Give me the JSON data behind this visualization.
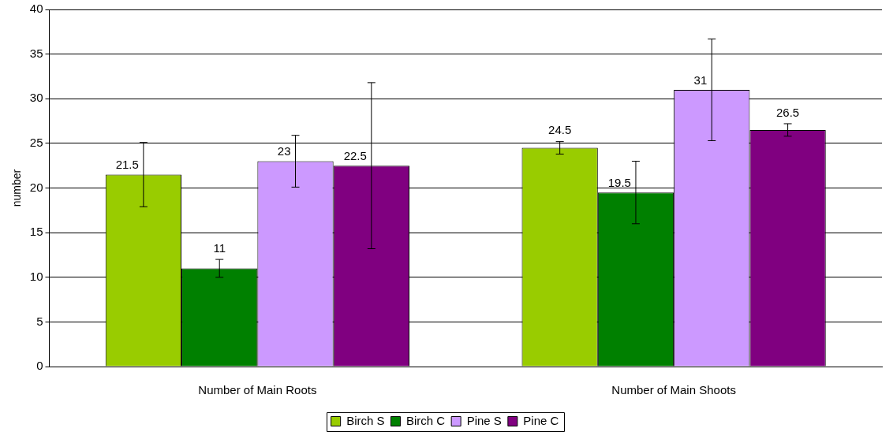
{
  "chart_data": {
    "type": "bar",
    "ylabel": "number",
    "categories": [
      "Number of Main Roots",
      "Number of Main Shoots"
    ],
    "series": [
      {
        "name": "Birch S",
        "color": "#99cc00",
        "values": [
          21.5,
          24.5
        ],
        "errors": [
          3.6,
          0.7
        ]
      },
      {
        "name": "Birch C",
        "color": "#008000",
        "values": [
          11,
          19.5
        ],
        "errors": [
          1,
          3.5
        ]
      },
      {
        "name": "Pine S",
        "color": "#cc99ff",
        "values": [
          23,
          31
        ],
        "errors": [
          2.9,
          5.7
        ]
      },
      {
        "name": "Pine C",
        "color": "#800080",
        "values": [
          22.5,
          26.5
        ],
        "errors": [
          9.3,
          0.7
        ]
      }
    ],
    "ylim": [
      0,
      40
    ],
    "yticks": [
      0,
      5,
      10,
      15,
      20,
      25,
      30,
      35,
      40
    ],
    "grid": "y",
    "legend": "bottom",
    "data_labels": true
  }
}
